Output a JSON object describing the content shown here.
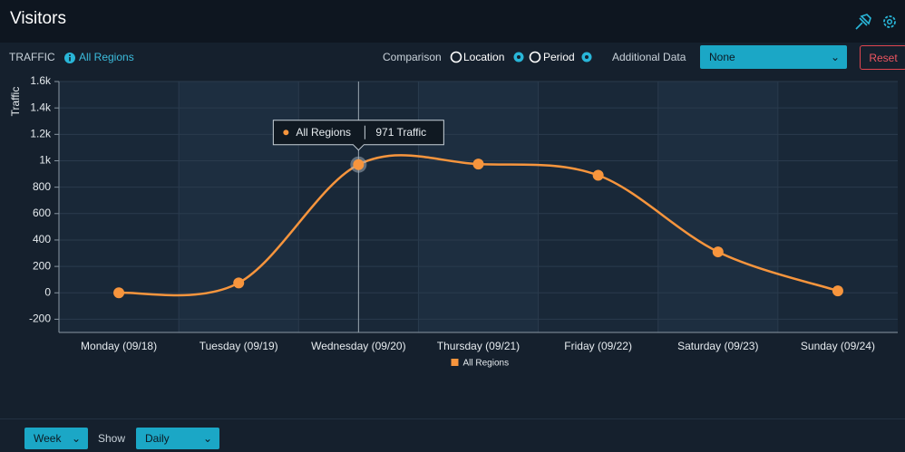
{
  "header": {
    "title": "Visitors"
  },
  "toolbar": {
    "traffic": "TRAFFIC",
    "region": "All Regions",
    "comparison": "Comparison",
    "location": "Location",
    "period": "Period",
    "additional_data": "Additional Data",
    "select": "None",
    "reset": "Reset"
  },
  "footer": {
    "range": "Week",
    "show": "Show",
    "interval": "Daily"
  },
  "chart_data": {
    "type": "line",
    "y_label": "Traffic",
    "categories": [
      "Monday (09/18)",
      "Tuesday (09/19)",
      "Wednesday (09/20)",
      "Thursday (09/21)",
      "Friday (09/22)",
      "Saturday (09/23)",
      "Sunday (09/24)"
    ],
    "series": [
      {
        "name": "All Regions",
        "color": "#f7953d",
        "values": [
          0,
          75,
          971,
          975,
          890,
          310,
          15
        ],
        "value_labels": [
          null,
          null,
          "971 Traffic",
          null,
          null,
          null,
          null
        ]
      }
    ],
    "ylim": [
      -300,
      1600
    ],
    "yticks": [
      {
        "value": 1600,
        "label": "1.6k"
      },
      {
        "value": 1400,
        "label": "1.4k"
      },
      {
        "value": 1200,
        "label": "1.2k"
      },
      {
        "value": 1000,
        "label": "1k"
      },
      800,
      600,
      400,
      200,
      0,
      -200
    ],
    "grid": true,
    "legend": "bottom"
  }
}
